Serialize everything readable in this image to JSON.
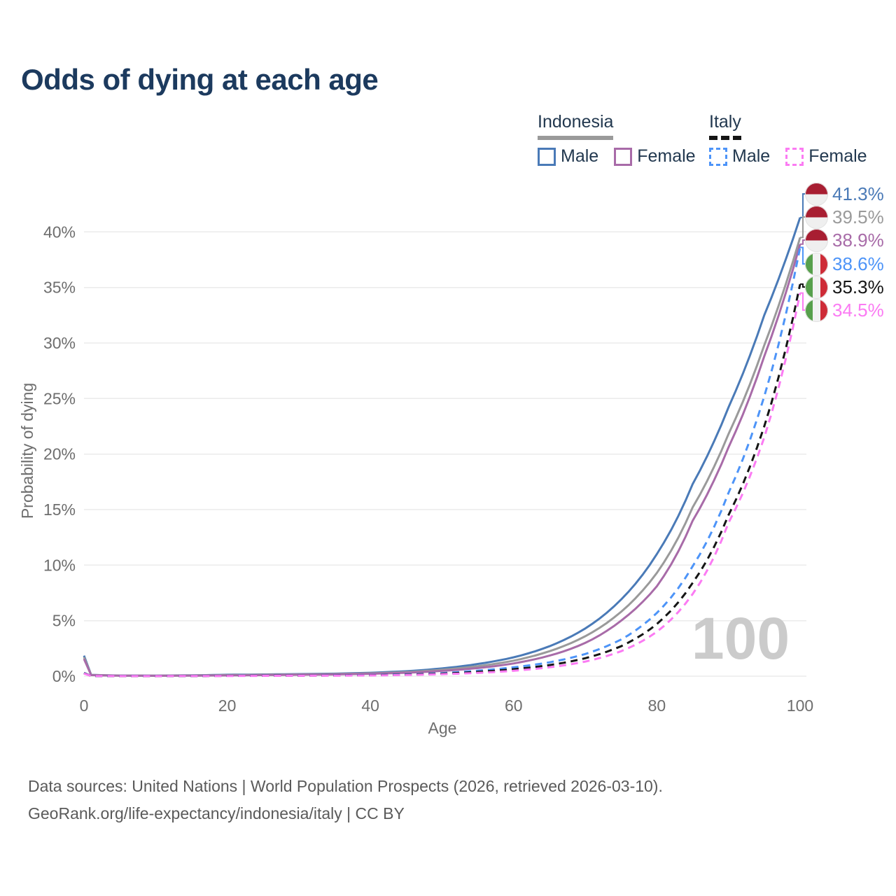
{
  "title": "Odds of dying at each age",
  "legend": {
    "groups": [
      {
        "title": "Indonesia",
        "style": "solid",
        "underline_series": 1,
        "items": [
          {
            "label": "Male",
            "series": 0
          },
          {
            "label": "Female",
            "series": 2
          }
        ]
      },
      {
        "title": "Italy",
        "style": "dashed",
        "underline_series": 4,
        "items": [
          {
            "label": "Male",
            "series": 3
          },
          {
            "label": "Female",
            "series": 5
          }
        ]
      }
    ]
  },
  "chart_data": {
    "type": "line",
    "title": "Odds of dying at each age",
    "xlabel": "Age",
    "ylabel": "Probability of dying",
    "xlim": [
      0,
      100
    ],
    "ylim_percent": [
      0,
      42
    ],
    "grid": "horizontal only, light gray, every 5%",
    "legend_position": "top-right",
    "watermark": "100",
    "x_ticks": [
      {
        "value": 0,
        "label": "0"
      },
      {
        "value": 20,
        "label": "20"
      },
      {
        "value": 40,
        "label": "40"
      },
      {
        "value": 60,
        "label": "60"
      },
      {
        "value": 80,
        "label": "80"
      },
      {
        "value": 100,
        "label": "100"
      }
    ],
    "y_ticks": [
      {
        "value": 0,
        "label": "0%"
      },
      {
        "value": 5,
        "label": "5%"
      },
      {
        "value": 10,
        "label": "10%"
      },
      {
        "value": 15,
        "label": "15%"
      },
      {
        "value": 20,
        "label": "20%"
      },
      {
        "value": 25,
        "label": "25%"
      },
      {
        "value": 30,
        "label": "30%"
      },
      {
        "value": 35,
        "label": "35%"
      },
      {
        "value": 40,
        "label": "40%"
      }
    ],
    "series": [
      {
        "id": "indonesia-male",
        "name": "Indonesia Male",
        "color": "#4a7ab7",
        "line_style": "solid",
        "flag": "indonesia",
        "end_label": "41.3%",
        "points": [
          [
            0,
            1.85
          ],
          [
            1,
            0.12
          ],
          [
            5,
            0.06
          ],
          [
            10,
            0.05
          ],
          [
            15,
            0.08
          ],
          [
            20,
            0.13
          ],
          [
            25,
            0.16
          ],
          [
            30,
            0.19
          ],
          [
            35,
            0.23
          ],
          [
            40,
            0.31
          ],
          [
            45,
            0.45
          ],
          [
            50,
            0.7
          ],
          [
            55,
            1.1
          ],
          [
            60,
            1.7
          ],
          [
            65,
            2.7
          ],
          [
            70,
            4.3
          ],
          [
            75,
            6.9
          ],
          [
            80,
            11.0
          ],
          [
            85,
            17.3
          ],
          [
            90,
            24.2
          ],
          [
            95,
            32.5
          ],
          [
            100,
            41.3
          ]
        ]
      },
      {
        "id": "indonesia-both",
        "name": "Indonesia",
        "color": "#9a9a9a",
        "line_style": "solid",
        "flag": "indonesia",
        "end_label": "39.5%",
        "points": [
          [
            0,
            1.7
          ],
          [
            1,
            0.11
          ],
          [
            5,
            0.055
          ],
          [
            10,
            0.045
          ],
          [
            15,
            0.065
          ],
          [
            20,
            0.1
          ],
          [
            25,
            0.13
          ],
          [
            30,
            0.16
          ],
          [
            35,
            0.19
          ],
          [
            40,
            0.26
          ],
          [
            45,
            0.37
          ],
          [
            50,
            0.58
          ],
          [
            55,
            0.9
          ],
          [
            60,
            1.4
          ],
          [
            65,
            2.25
          ],
          [
            70,
            3.6
          ],
          [
            75,
            5.8
          ],
          [
            80,
            9.3
          ],
          [
            85,
            15.2
          ],
          [
            90,
            21.8
          ],
          [
            95,
            29.8
          ],
          [
            100,
            39.5
          ]
        ]
      },
      {
        "id": "indonesia-female",
        "name": "Indonesia Female",
        "color": "#a86ba8",
        "line_style": "solid",
        "flag": "indonesia",
        "end_label": "38.9%",
        "points": [
          [
            0,
            1.55
          ],
          [
            1,
            0.1
          ],
          [
            5,
            0.05
          ],
          [
            10,
            0.04
          ],
          [
            15,
            0.05
          ],
          [
            20,
            0.07
          ],
          [
            25,
            0.1
          ],
          [
            30,
            0.13
          ],
          [
            35,
            0.16
          ],
          [
            40,
            0.22
          ],
          [
            45,
            0.31
          ],
          [
            50,
            0.48
          ],
          [
            55,
            0.73
          ],
          [
            60,
            1.15
          ],
          [
            65,
            1.85
          ],
          [
            70,
            3.0
          ],
          [
            75,
            5.0
          ],
          [
            80,
            8.1
          ],
          [
            85,
            14.0
          ],
          [
            90,
            20.6
          ],
          [
            95,
            28.8
          ],
          [
            100,
            38.9
          ]
        ]
      },
      {
        "id": "italy-male",
        "name": "Italy Male",
        "color": "#4d94f8",
        "line_style": "dashed",
        "flag": "italy",
        "end_label": "38.6%",
        "points": [
          [
            0,
            0.3
          ],
          [
            1,
            0.02
          ],
          [
            5,
            0.01
          ],
          [
            10,
            0.01
          ],
          [
            15,
            0.02
          ],
          [
            20,
            0.04
          ],
          [
            25,
            0.05
          ],
          [
            30,
            0.06
          ],
          [
            35,
            0.08
          ],
          [
            40,
            0.11
          ],
          [
            45,
            0.17
          ],
          [
            50,
            0.28
          ],
          [
            55,
            0.5
          ],
          [
            60,
            0.8
          ],
          [
            65,
            1.25
          ],
          [
            70,
            2.0
          ],
          [
            75,
            3.3
          ],
          [
            80,
            5.7
          ],
          [
            85,
            9.9
          ],
          [
            90,
            16.5
          ],
          [
            95,
            25.2
          ],
          [
            100,
            38.6
          ]
        ]
      },
      {
        "id": "italy-both",
        "name": "Italy",
        "color": "#151515",
        "line_style": "dashed",
        "flag": "italy",
        "end_label": "35.3%",
        "points": [
          [
            0,
            0.27
          ],
          [
            1,
            0.018
          ],
          [
            5,
            0.009
          ],
          [
            10,
            0.009
          ],
          [
            15,
            0.016
          ],
          [
            20,
            0.03
          ],
          [
            25,
            0.04
          ],
          [
            30,
            0.05
          ],
          [
            35,
            0.065
          ],
          [
            40,
            0.09
          ],
          [
            45,
            0.14
          ],
          [
            50,
            0.23
          ],
          [
            55,
            0.39
          ],
          [
            60,
            0.63
          ],
          [
            65,
            1.0
          ],
          [
            70,
            1.62
          ],
          [
            75,
            2.7
          ],
          [
            80,
            4.7
          ],
          [
            85,
            8.4
          ],
          [
            90,
            14.5
          ],
          [
            95,
            22.5
          ],
          [
            100,
            35.3
          ]
        ]
      },
      {
        "id": "italy-female",
        "name": "Italy Female",
        "color": "#fb7bf3",
        "line_style": "dashed",
        "flag": "italy",
        "end_label": "34.5%",
        "points": [
          [
            0,
            0.24
          ],
          [
            1,
            0.016
          ],
          [
            5,
            0.008
          ],
          [
            10,
            0.008
          ],
          [
            15,
            0.013
          ],
          [
            20,
            0.02
          ],
          [
            25,
            0.03
          ],
          [
            30,
            0.04
          ],
          [
            35,
            0.05
          ],
          [
            40,
            0.07
          ],
          [
            45,
            0.11
          ],
          [
            50,
            0.18
          ],
          [
            55,
            0.3
          ],
          [
            60,
            0.49
          ],
          [
            65,
            0.8
          ],
          [
            70,
            1.32
          ],
          [
            75,
            2.25
          ],
          [
            80,
            4.0
          ],
          [
            85,
            7.4
          ],
          [
            90,
            13.8
          ],
          [
            95,
            21.5
          ],
          [
            100,
            34.5
          ]
        ]
      }
    ]
  },
  "footer": {
    "line1": "Data sources: United Nations | World Population Prospects (2026, retrieved 2026-03-10).",
    "line2": "GeoRank.org/life-expectancy/indonesia/italy | CC BY"
  }
}
